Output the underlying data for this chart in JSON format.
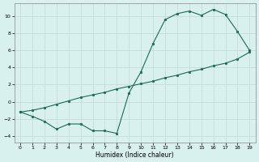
{
  "xlabel": "Humidex (Indice chaleur)",
  "bg_color": "#d8f0ee",
  "grid_color": "#c8dcd8",
  "line_color": "#1a6b5a",
  "line1_x": [
    0,
    1,
    2,
    3,
    4,
    5,
    6,
    7,
    8,
    9,
    10,
    11,
    12,
    13,
    14,
    15,
    16,
    17,
    18,
    19
  ],
  "line1_y": [
    -1.2,
    -1.7,
    -2.3,
    -3.2,
    -2.6,
    -2.6,
    -3.4,
    -3.4,
    -3.7,
    1.0,
    3.5,
    6.8,
    9.6,
    10.3,
    10.6,
    10.1,
    10.8,
    10.2,
    8.2,
    6.0
  ],
  "line2_x": [
    0,
    1,
    2,
    3,
    4,
    5,
    6,
    7,
    8,
    9,
    10,
    11,
    12,
    13,
    14,
    15,
    16,
    17,
    18,
    19
  ],
  "line2_y": [
    -1.2,
    -1.0,
    -0.7,
    -0.3,
    0.1,
    0.5,
    0.8,
    1.1,
    1.5,
    1.8,
    2.1,
    2.4,
    2.8,
    3.1,
    3.5,
    3.8,
    4.2,
    4.5,
    5.0,
    5.8
  ],
  "xlim": [
    -0.5,
    19.5
  ],
  "ylim": [
    -4.8,
    11.5
  ],
  "yticks": [
    -4,
    -2,
    0,
    2,
    4,
    6,
    8,
    10
  ],
  "xticks": [
    0,
    1,
    2,
    3,
    4,
    5,
    6,
    7,
    8,
    9,
    10,
    11,
    12,
    13,
    14,
    15,
    16,
    17,
    18,
    19
  ]
}
